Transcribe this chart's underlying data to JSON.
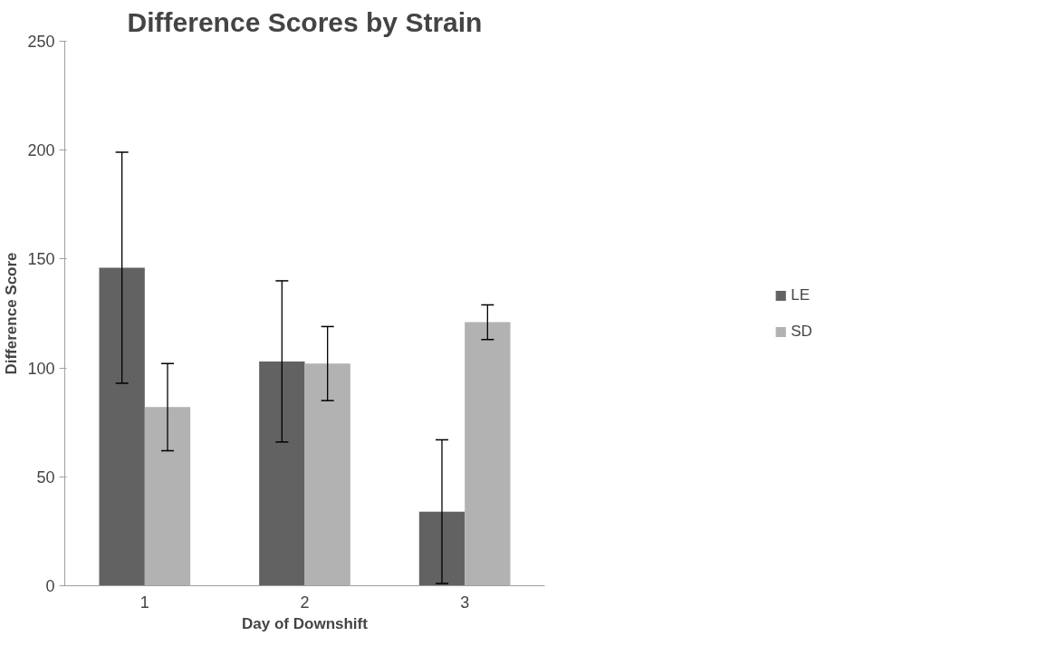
{
  "chart_data": {
    "type": "bar",
    "title": "Difference Scores by Strain",
    "xlabel": "Day of Downshift",
    "ylabel": "Difference Score",
    "categories": [
      "1",
      "2",
      "3"
    ],
    "series": [
      {
        "name": "LE",
        "color": "#626262",
        "values": [
          146,
          103,
          34
        ],
        "errors": [
          53,
          37,
          33
        ]
      },
      {
        "name": "SD",
        "color": "#b2b2b2",
        "values": [
          82,
          102,
          121
        ],
        "errors": [
          20,
          17,
          8
        ]
      }
    ],
    "ylim": [
      0,
      250
    ],
    "yticks": [
      0,
      50,
      100,
      150,
      200,
      250
    ],
    "grid": false,
    "legend": "right"
  }
}
